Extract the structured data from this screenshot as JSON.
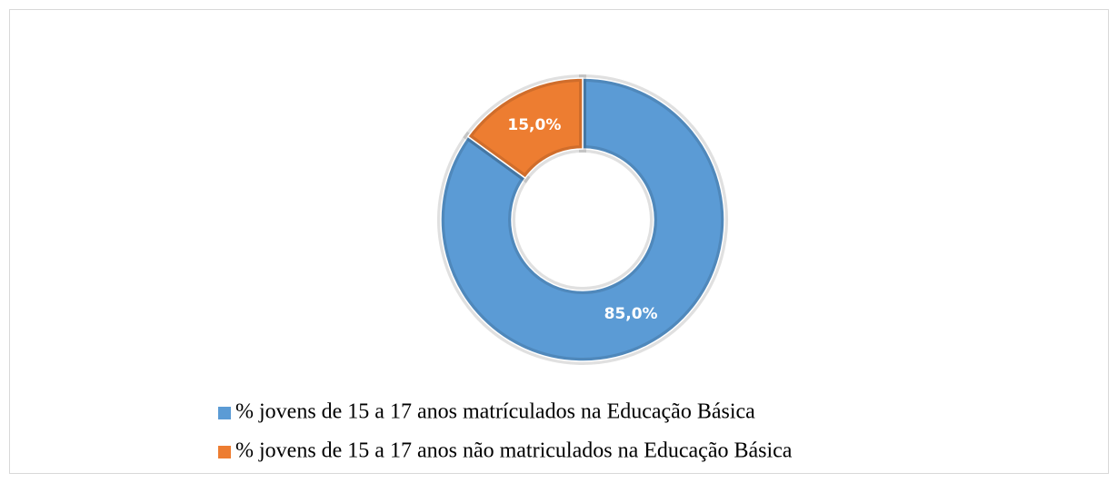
{
  "chart_data": {
    "type": "pie",
    "donut": true,
    "categories": [
      "% jovens de 15 a 17 anos matrículados na Educação Básica",
      "% jovens de 15 a 17 anos não matriculados na Educação Básica"
    ],
    "values": [
      85,
      15
    ],
    "value_labels": [
      "85,0%",
      "15,0%"
    ],
    "colors": [
      "#5b9bd5",
      "#ed7d31"
    ],
    "legend": "bottom"
  }
}
